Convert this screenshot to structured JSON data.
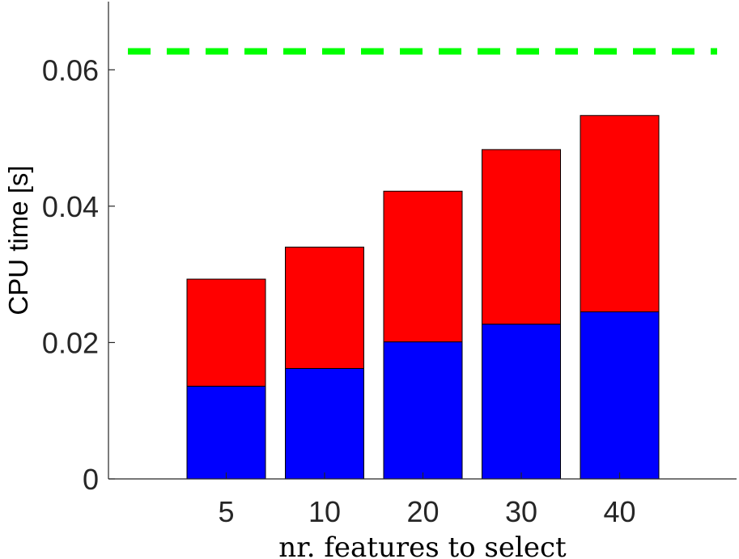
{
  "chart_data": {
    "type": "bar",
    "stacked": true,
    "categories": [
      "5",
      "10",
      "20",
      "30",
      "40"
    ],
    "series": [
      {
        "color": "#0000ff",
        "values": [
          0.0136,
          0.0162,
          0.0201,
          0.0227,
          0.0245
        ]
      },
      {
        "color": "#ff0000",
        "values": [
          0.0157,
          0.0178,
          0.0221,
          0.0256,
          0.0288
        ]
      }
    ],
    "reference_line": {
      "value": 0.0627,
      "color": "#00ff00",
      "style": "dashed"
    },
    "xlabel": "nr. features to select",
    "ylabel": "CPU time [s]",
    "ylim": [
      0,
      0.07
    ],
    "yticks": [
      0,
      0.02,
      0.04,
      0.06
    ],
    "ytick_labels": [
      "0",
      "0.02",
      "0.04",
      "0.06"
    ],
    "grid": false,
    "legend": "none"
  }
}
